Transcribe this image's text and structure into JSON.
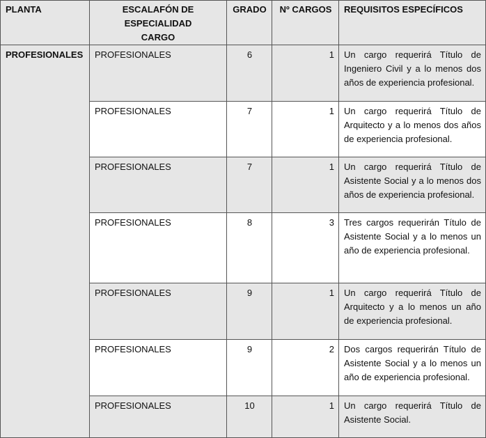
{
  "headers": {
    "planta": "PLANTA",
    "escalafon": "ESCALAFÓN DE ESPECIALIDAD CARGO",
    "grado": "GRADO",
    "cargos": "Nº CARGOS",
    "requisitos": "REQUISITOS ESPECÍFICOS"
  },
  "planta": "PROFESIONALES",
  "rows": [
    {
      "escalafon": "PROFESIONALES",
      "grado": "6",
      "cargos": "1",
      "requisitos": "Un cargo requerirá Título de Ingeniero Civil y a lo menos dos años de experiencia profesional."
    },
    {
      "escalafon": "PROFESIONALES",
      "grado": "7",
      "cargos": "1",
      "requisitos": "Un cargo requerirá Título de Arquitecto y a lo menos dos años de experiencia profesional."
    },
    {
      "escalafon": "PROFESIONALES",
      "grado": "7",
      "cargos": "1",
      "requisitos": "Un cargo requerirá Título de Asistente Social y a lo menos dos años de experiencia profesional."
    },
    {
      "escalafon": "PROFESIONALES",
      "grado": "8",
      "cargos": "3",
      "requisitos": "Tres cargos requerirán Título de Asistente Social y a lo menos un año de experiencia profesional."
    },
    {
      "escalafon": "PROFESIONALES",
      "grado": "9",
      "cargos": "1",
      "requisitos": "Un cargo requerirá Título de Arquitecto y a lo menos un año de experiencia profesional."
    },
    {
      "escalafon": "PROFESIONALES",
      "grado": "9",
      "cargos": "2",
      "requisitos": "Dos cargos requerirán Título de Asistente Social y a lo menos un año de experiencia profesional."
    },
    {
      "escalafon": "PROFESIONALES",
      "grado": "10",
      "cargos": "1",
      "requisitos": "Un cargo requerirá Título de Asistente Social."
    }
  ]
}
